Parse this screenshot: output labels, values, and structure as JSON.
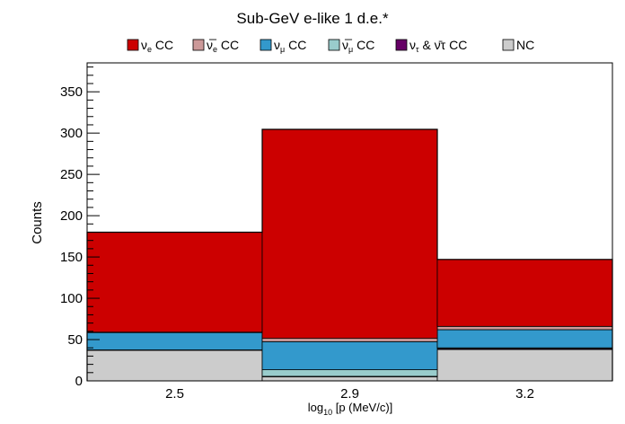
{
  "chart_data": {
    "type": "bar",
    "stacked": true,
    "title": "Sub-GeV  e-like 1 d.e.*",
    "ylabel": "Counts",
    "xlabel": {
      "main": "log",
      "sub": "10",
      "rest": " [p (MeV/c)]"
    },
    "categories": [
      "2.5",
      "2.9",
      "3.2"
    ],
    "ylim": [
      0,
      385
    ],
    "yticks": [
      0,
      50,
      100,
      150,
      200,
      250,
      300,
      350
    ],
    "legend_position": "top",
    "series": [
      {
        "key": "nc",
        "label": {
          "sym": "",
          "sub": "",
          "over": false,
          "text": "NC"
        },
        "color": "#cccccc",
        "values": [
          37,
          5,
          38
        ]
      },
      {
        "key": "nutau",
        "label": {
          "sym": "ν",
          "sub": "τ",
          "over": false,
          "text": " & ν̄τ CC",
          "combo": true
        },
        "color": "#660066",
        "values": [
          0.5,
          0.5,
          1
        ]
      },
      {
        "key": "numubar",
        "label": {
          "sym": "ν",
          "sub": "μ",
          "over": true,
          "text": " CC"
        },
        "color": "#99cccc",
        "values": [
          0,
          8,
          1
        ]
      },
      {
        "key": "numu",
        "label": {
          "sym": "ν",
          "sub": "μ",
          "over": false,
          "text": " CC"
        },
        "color": "#3399cc",
        "values": [
          21,
          34,
          22
        ]
      },
      {
        "key": "nuebar",
        "label": {
          "sym": "ν",
          "sub": "e",
          "over": true,
          "text": " CC"
        },
        "color": "#cc9999",
        "values": [
          0.5,
          4,
          4
        ]
      },
      {
        "key": "nue",
        "label": {
          "sym": "ν",
          "sub": "e",
          "over": false,
          "text": " CC"
        },
        "color": "#cc0000",
        "values": [
          121,
          253,
          81
        ]
      }
    ],
    "legend_order": [
      "nue",
      "nuebar",
      "numu",
      "numubar",
      "nutau",
      "nc"
    ]
  }
}
